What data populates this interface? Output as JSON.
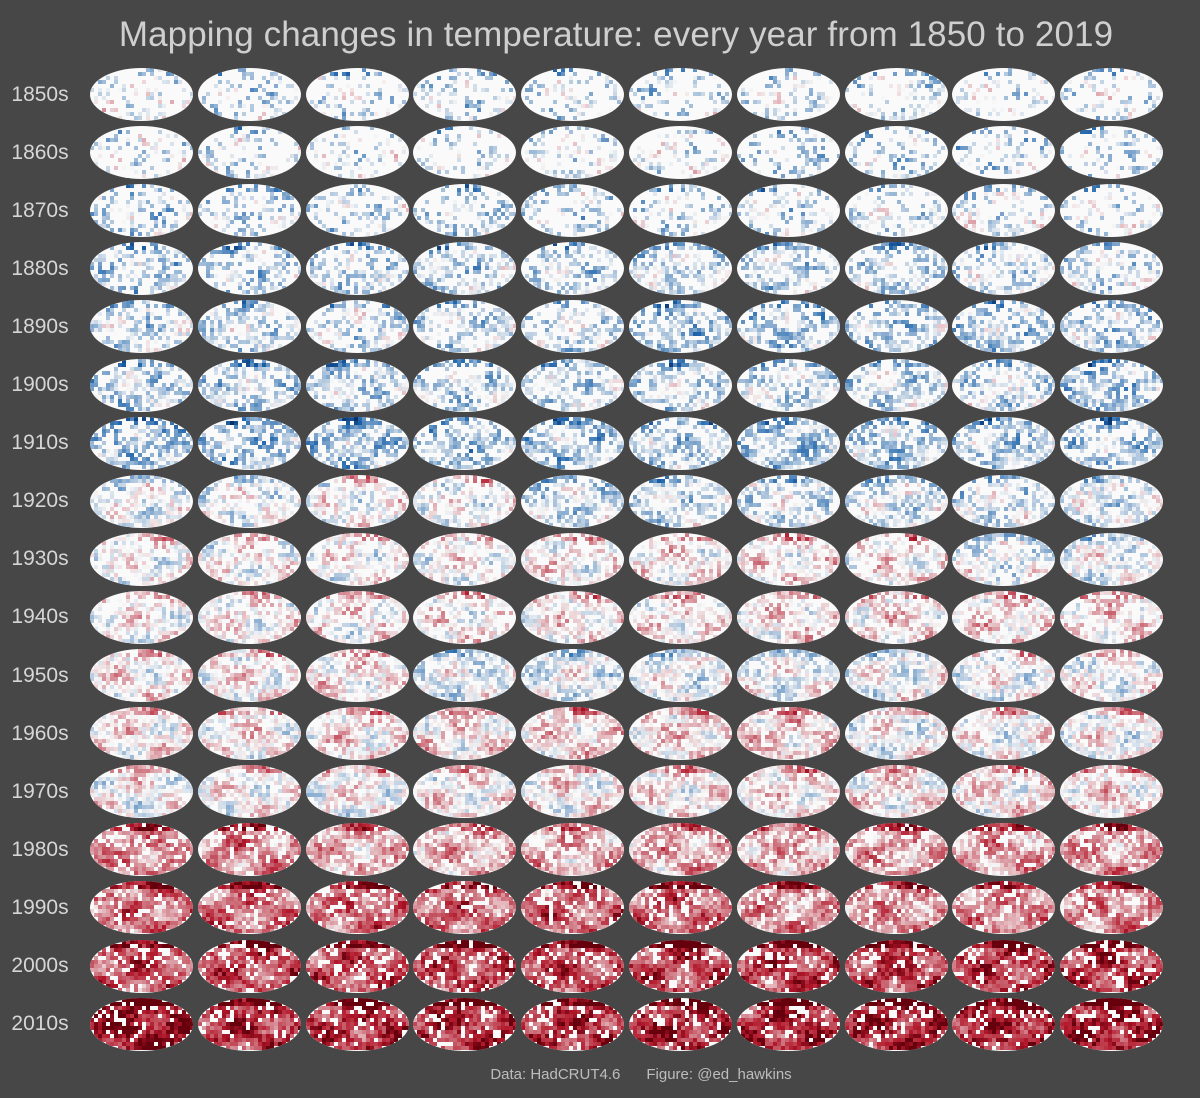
{
  "title": "Mapping changes in temperature: every year from 1850 to 2019",
  "footer": {
    "data_credit": "Data: HadCRUT4.6",
    "figure_credit": "Figure: @ed_hawkins"
  },
  "chart_data": {
    "type": "heatmap",
    "title": "Mapping changes in temperature: every year from 1850 to 2019",
    "layout": "small multiples of global temperature anomaly maps, 10 years per row",
    "year_range": [
      1850,
      2019
    ],
    "rows": [
      "1850s",
      "1860s",
      "1870s",
      "1880s",
      "1890s",
      "1900s",
      "1910s",
      "1920s",
      "1930s",
      "1940s",
      "1950s",
      "1960s",
      "1970s",
      "1980s",
      "1990s",
      "2000s",
      "2010s"
    ],
    "columns_per_row": 10,
    "colors": {
      "cold": "#2166ac",
      "neutral": "#f7f7f7",
      "warm": "#b2182b",
      "background": "#474747"
    },
    "decadal_warmth_index": [
      -0.15,
      -0.2,
      -0.22,
      -0.2,
      -0.25,
      -0.25,
      -0.3,
      -0.12,
      0.0,
      0.08,
      -0.02,
      0.06,
      0.05,
      0.32,
      0.45,
      0.62,
      0.78
    ],
    "coverage": [
      0.32,
      0.3,
      0.36,
      0.52,
      0.55,
      0.6,
      0.64,
      0.66,
      0.7,
      0.7,
      0.8,
      0.86,
      0.88,
      0.9,
      0.9,
      0.9,
      0.92
    ],
    "source": "Data: HadCRUT4.6"
  }
}
